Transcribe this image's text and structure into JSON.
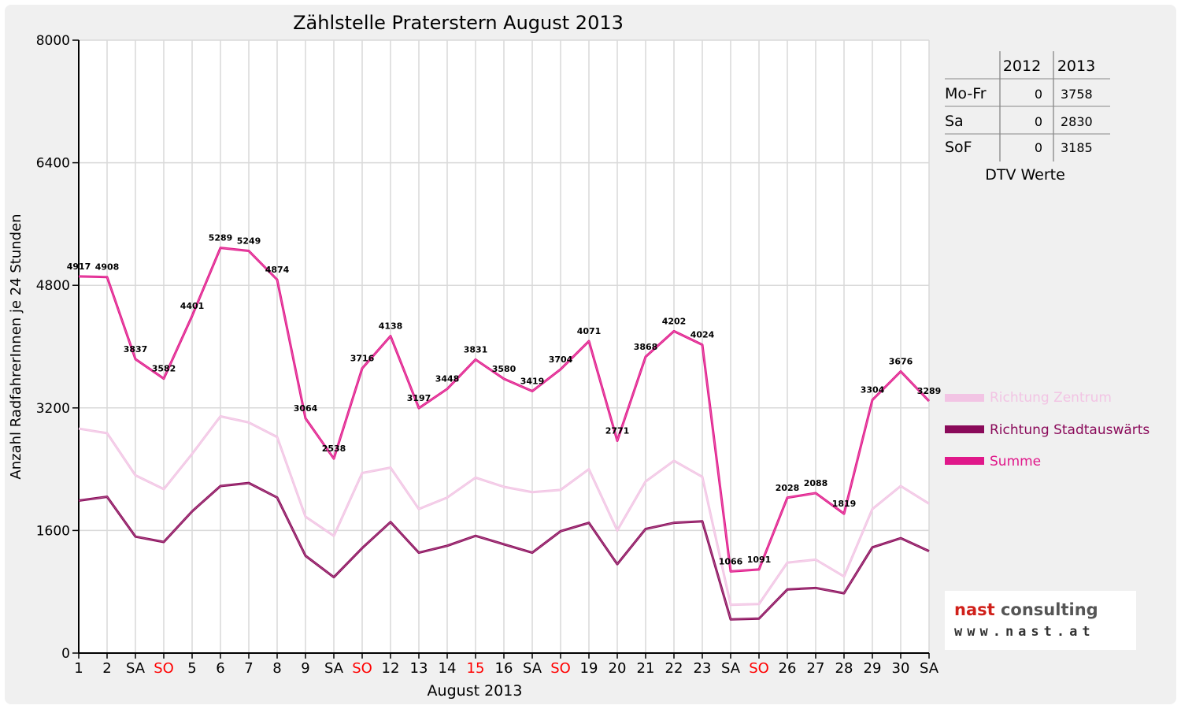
{
  "chart_data": {
    "type": "line",
    "title": "Zählstelle Praterstern August 2013",
    "xlabel": "August 2013",
    "ylabel": "Anzahl RadfahrerInnen je 24 Stunden",
    "ylim": [
      0,
      8000
    ],
    "yticks": [
      0,
      1600,
      3200,
      4800,
      6400,
      8000
    ],
    "grid": true,
    "legend_position": "right",
    "categories": [
      "1",
      "2",
      "SA",
      "SO",
      "5",
      "6",
      "7",
      "8",
      "9",
      "SA",
      "SO",
      "12",
      "13",
      "14",
      "15",
      "16",
      "SA",
      "SO",
      "19",
      "20",
      "21",
      "22",
      "23",
      "SA",
      "SO",
      "26",
      "27",
      "28",
      "29",
      "30",
      "SA"
    ],
    "highlight_categories": [
      3,
      10,
      14,
      17,
      24
    ],
    "series": [
      {
        "name": "Richtung Zentrum",
        "color": "#f2c4e4",
        "values": [
          2930,
          2870,
          2320,
          2140,
          2600,
          3090,
          3010,
          2820,
          1780,
          1530,
          2350,
          2420,
          1880,
          2030,
          2290,
          2170,
          2100,
          2130,
          2400,
          1600,
          2240,
          2510,
          2300,
          630,
          640,
          1180,
          1220,
          1000,
          1880,
          2180,
          1950
        ]
      },
      {
        "name": "Richtung Stadtauswärts",
        "color": "#8a0a5a",
        "values": [
          1990,
          2040,
          1520,
          1450,
          1850,
          2180,
          2220,
          2030,
          1270,
          990,
          1370,
          1710,
          1310,
          1400,
          1530,
          1420,
          1310,
          1590,
          1700,
          1160,
          1620,
          1700,
          1720,
          440,
          450,
          830,
          850,
          780,
          1380,
          1500,
          1330
        ]
      },
      {
        "name": "Summe",
        "color": "#e0188a",
        "values": [
          4917,
          4908,
          3837,
          3582,
          4401,
          5289,
          5249,
          4874,
          3064,
          2538,
          3716,
          4138,
          3197,
          3448,
          3831,
          3580,
          3419,
          3704,
          4071,
          2771,
          3868,
          4202,
          4024,
          1066,
          1091,
          2028,
          2088,
          1819,
          3304,
          3676,
          3289
        ]
      }
    ],
    "data_labels": [
      "4917",
      "4908",
      "3837",
      "3582",
      "4401",
      "5289",
      "5249",
      "4874",
      "3064",
      "2538",
      "3716",
      "4138",
      "3197",
      "3448",
      "3831",
      "3580",
      "3419",
      "3704",
      "4071",
      "2771",
      "3868",
      "4202",
      "4024",
      "1066",
      "1091",
      "2028",
      "2088",
      "1819",
      "3304",
      "3676",
      "3289"
    ]
  },
  "dtv_table": {
    "caption": "DTV Werte",
    "headers": [
      "",
      "2012",
      "2013"
    ],
    "rows": [
      {
        "label": "Mo-Fr",
        "v2012": "0",
        "v2013": "3758"
      },
      {
        "label": "Sa",
        "v2012": "0",
        "v2013": "2830"
      },
      {
        "label": "SoF",
        "v2012": "0",
        "v2013": "3185"
      }
    ]
  },
  "logo": {
    "brand": "nast",
    "rest": " consulting",
    "url": "www.nast.at"
  },
  "colors": {
    "highlight_tick": "#ff0000",
    "background": "#f0f0f0"
  }
}
